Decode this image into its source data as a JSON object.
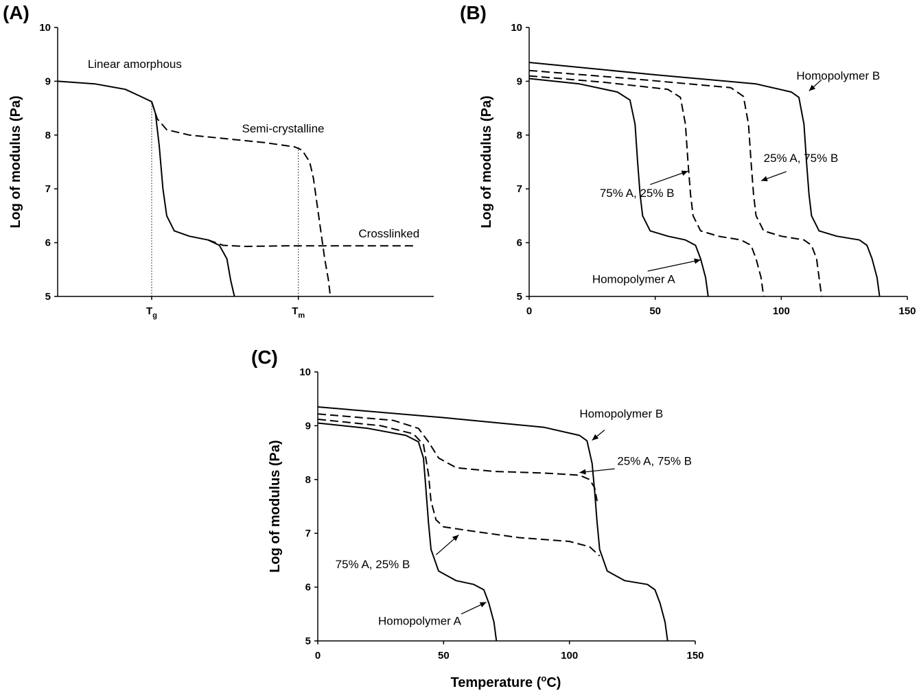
{
  "chart_data": [
    {
      "id": "A",
      "panel_label": "(A)",
      "type": "line",
      "ylabel": "Log of modulus (Pa)",
      "ylim": [
        5,
        10
      ],
      "yticks": [
        "5",
        "6",
        "7",
        "8",
        "9",
        "10"
      ],
      "xlim": [
        0,
        100
      ],
      "xtick_labels": [
        {
          "base": "T",
          "sub": "g",
          "x": 25
        },
        {
          "base": "T",
          "sub": "m",
          "x": 64
        }
      ],
      "series": [
        {
          "name": "Linear amorphous",
          "style": "solid",
          "points": [
            [
              0,
              9.0
            ],
            [
              10,
              8.95
            ],
            [
              18,
              8.85
            ],
            [
              22,
              8.72
            ],
            [
              25,
              8.62
            ],
            [
              26,
              8.4
            ],
            [
              27,
              7.8
            ],
            [
              28,
              7.0
            ],
            [
              29,
              6.5
            ],
            [
              31,
              6.22
            ],
            [
              35,
              6.12
            ],
            [
              40,
              6.05
            ],
            [
              43,
              5.95
            ],
            [
              45,
              5.7
            ],
            [
              46,
              5.3
            ],
            [
              47,
              5.0
            ]
          ]
        },
        {
          "name": "Semi-crystalline",
          "style": "dashed",
          "points": [
            [
              25,
              8.62
            ],
            [
              26.5,
              8.3
            ],
            [
              29,
              8.1
            ],
            [
              35,
              8.0
            ],
            [
              45,
              7.93
            ],
            [
              55,
              7.86
            ],
            [
              63,
              7.78
            ],
            [
              65,
              7.72
            ],
            [
              67,
              7.5
            ],
            [
              68,
              7.2
            ],
            [
              69,
              6.7
            ],
            [
              70,
              6.2
            ],
            [
              71,
              5.7
            ],
            [
              72,
              5.3
            ],
            [
              72.5,
              5.0
            ]
          ]
        },
        {
          "name": "Crosslinked",
          "style": "dashed",
          "points": [
            [
              40,
              6.05
            ],
            [
              44,
              5.95
            ],
            [
              50,
              5.93
            ],
            [
              60,
              5.94
            ],
            [
              75,
              5.94
            ],
            [
              95,
              5.94
            ]
          ]
        }
      ],
      "vlines": [
        25,
        64
      ],
      "annotations": [
        {
          "text": "Linear amorphous",
          "x": 8,
          "y": 9.25
        },
        {
          "text": "Semi-crystalline",
          "x": 49,
          "y": 8.05
        },
        {
          "text": "Crosslinked",
          "x": 80,
          "y": 6.1
        }
      ]
    },
    {
      "id": "B",
      "panel_label": "(B)",
      "type": "line",
      "ylabel": "Log of modulus (Pa)",
      "ylim": [
        5,
        10
      ],
      "yticks": [
        "5",
        "6",
        "7",
        "8",
        "9",
        "10"
      ],
      "xlim": [
        0,
        150
      ],
      "xticks": [
        "0",
        "50",
        "100",
        "150"
      ],
      "series": [
        {
          "name": "Homopolymer A",
          "style": "solid",
          "points": [
            [
              0,
              9.05
            ],
            [
              20,
              8.95
            ],
            [
              35,
              8.8
            ],
            [
              40,
              8.65
            ],
            [
              42,
              8.2
            ],
            [
              43,
              7.5
            ],
            [
              44,
              6.9
            ],
            [
              45,
              6.5
            ],
            [
              48,
              6.22
            ],
            [
              55,
              6.12
            ],
            [
              62,
              6.05
            ],
            [
              66,
              5.95
            ],
            [
              68,
              5.7
            ],
            [
              70,
              5.35
            ],
            [
              71,
              5.0
            ]
          ]
        },
        {
          "name": "75% A, 25% B",
          "style": "dashed",
          "points": [
            [
              0,
              9.1
            ],
            [
              30,
              8.98
            ],
            [
              55,
              8.85
            ],
            [
              60,
              8.7
            ],
            [
              62,
              8.2
            ],
            [
              63,
              7.5
            ],
            [
              64,
              6.9
            ],
            [
              65,
              6.5
            ],
            [
              68,
              6.22
            ],
            [
              75,
              6.12
            ],
            [
              84,
              6.05
            ],
            [
              88,
              5.95
            ],
            [
              90,
              5.7
            ],
            [
              92,
              5.35
            ],
            [
              93,
              5.0
            ]
          ]
        },
        {
          "name": "25% A, 75% B",
          "style": "dashed",
          "points": [
            [
              0,
              9.2
            ],
            [
              40,
              9.05
            ],
            [
              80,
              8.88
            ],
            [
              85,
              8.72
            ],
            [
              87,
              8.2
            ],
            [
              88,
              7.5
            ],
            [
              89,
              6.9
            ],
            [
              90,
              6.5
            ],
            [
              93,
              6.22
            ],
            [
              100,
              6.12
            ],
            [
              109,
              6.05
            ],
            [
              112,
              5.95
            ],
            [
              114,
              5.7
            ],
            [
              115,
              5.35
            ],
            [
              116,
              5.0
            ]
          ]
        },
        {
          "name": "Homopolymer B",
          "style": "solid",
          "points": [
            [
              0,
              9.35
            ],
            [
              50,
              9.12
            ],
            [
              90,
              8.95
            ],
            [
              104,
              8.8
            ],
            [
              107,
              8.7
            ],
            [
              109,
              8.2
            ],
            [
              110,
              7.5
            ],
            [
              111,
              6.9
            ],
            [
              112,
              6.5
            ],
            [
              115,
              6.22
            ],
            [
              122,
              6.12
            ],
            [
              131,
              6.05
            ],
            [
              134,
              5.95
            ],
            [
              136,
              5.7
            ],
            [
              138,
              5.35
            ],
            [
              139,
              5.0
            ]
          ]
        }
      ],
      "annotations": [
        {
          "text": "Homopolymer B",
          "x": 106,
          "y": 9.03,
          "arrow": [
            [
              116,
              9.03
            ],
            [
              111,
              8.82
            ]
          ]
        },
        {
          "text": "25% A, 75% B",
          "x": 93,
          "y": 7.5,
          "arrow": [
            [
              102,
              7.32
            ],
            [
              92,
              7.15
            ]
          ]
        },
        {
          "text": "75% A, 25% B",
          "x": 28,
          "y": 6.85,
          "arrow": [
            [
              48,
              7.08
            ],
            [
              63,
              7.33
            ]
          ]
        },
        {
          "text": "Homopolymer A",
          "x": 25,
          "y": 5.25,
          "arrow": [
            [
              47,
              5.47
            ],
            [
              68,
              5.68
            ]
          ]
        }
      ]
    },
    {
      "id": "C",
      "panel_label": "(C)",
      "type": "line",
      "ylabel": "Log of modulus (Pa)",
      "xlabel": "Temperature (",
      "xlabel_sup": "o",
      "xlabel_tail": "C)",
      "ylim": [
        5,
        10
      ],
      "yticks": [
        "5",
        "6",
        "7",
        "8",
        "9",
        "10"
      ],
      "xlim": [
        0,
        150
      ],
      "xticks": [
        "0",
        "50",
        "100",
        "150"
      ],
      "series": [
        {
          "name": "Homopolymer A",
          "style": "solid",
          "points": [
            [
              0,
              9.05
            ],
            [
              20,
              8.95
            ],
            [
              35,
              8.82
            ],
            [
              40,
              8.7
            ],
            [
              42,
              8.4
            ],
            [
              43,
              7.8
            ],
            [
              44,
              7.2
            ],
            [
              45,
              6.7
            ],
            [
              48,
              6.3
            ],
            [
              55,
              6.12
            ],
            [
              62,
              6.05
            ],
            [
              66,
              5.95
            ],
            [
              68,
              5.7
            ],
            [
              70,
              5.35
            ],
            [
              71,
              5.0
            ]
          ]
        },
        {
          "name": "75% A, 25% B",
          "style": "dashed",
          "points": [
            [
              0,
              9.12
            ],
            [
              25,
              9.0
            ],
            [
              38,
              8.85
            ],
            [
              42,
              8.65
            ],
            [
              44,
              8.1
            ],
            [
              45,
              7.6
            ],
            [
              47,
              7.25
            ],
            [
              50,
              7.12
            ],
            [
              60,
              7.05
            ],
            [
              80,
              6.92
            ],
            [
              100,
              6.85
            ],
            [
              108,
              6.75
            ],
            [
              112,
              6.58
            ]
          ]
        },
        {
          "name": "25% A, 75% B",
          "style": "dashed",
          "points": [
            [
              0,
              9.22
            ],
            [
              30,
              9.1
            ],
            [
              40,
              8.95
            ],
            [
              44,
              8.7
            ],
            [
              48,
              8.4
            ],
            [
              55,
              8.22
            ],
            [
              70,
              8.15
            ],
            [
              90,
              8.12
            ],
            [
              104,
              8.08
            ],
            [
              108,
              8.0
            ],
            [
              110,
              7.85
            ],
            [
              111,
              7.6
            ]
          ]
        },
        {
          "name": "Homopolymer B",
          "style": "solid",
          "points": [
            [
              0,
              9.35
            ],
            [
              50,
              9.15
            ],
            [
              90,
              8.97
            ],
            [
              104,
              8.82
            ],
            [
              107,
              8.72
            ],
            [
              109,
              8.3
            ],
            [
              110,
              7.8
            ],
            [
              111,
              7.2
            ],
            [
              112,
              6.7
            ],
            [
              115,
              6.3
            ],
            [
              122,
              6.12
            ],
            [
              131,
              6.05
            ],
            [
              134,
              5.95
            ],
            [
              136,
              5.7
            ],
            [
              138,
              5.35
            ],
            [
              139,
              5.0
            ]
          ]
        }
      ],
      "annotations": [
        {
          "text": "Homopolymer B",
          "x": 104,
          "y": 9.15,
          "arrow": [
            [
              114,
              8.92
            ],
            [
              109,
              8.73
            ]
          ]
        },
        {
          "text": "25% A, 75% B",
          "x": 119,
          "y": 8.27,
          "arrow": [
            [
              118,
              8.2
            ],
            [
              104,
              8.13
            ]
          ]
        },
        {
          "text": "75% A, 25% B",
          "x": 7,
          "y": 6.35,
          "arrow": [
            [
              47,
              6.6
            ],
            [
              56,
              6.97
            ]
          ]
        },
        {
          "text": "Homopolymer A",
          "x": 24,
          "y": 5.3,
          "arrow": [
            [
              57,
              5.5
            ],
            [
              67,
              5.72
            ]
          ]
        }
      ]
    }
  ]
}
